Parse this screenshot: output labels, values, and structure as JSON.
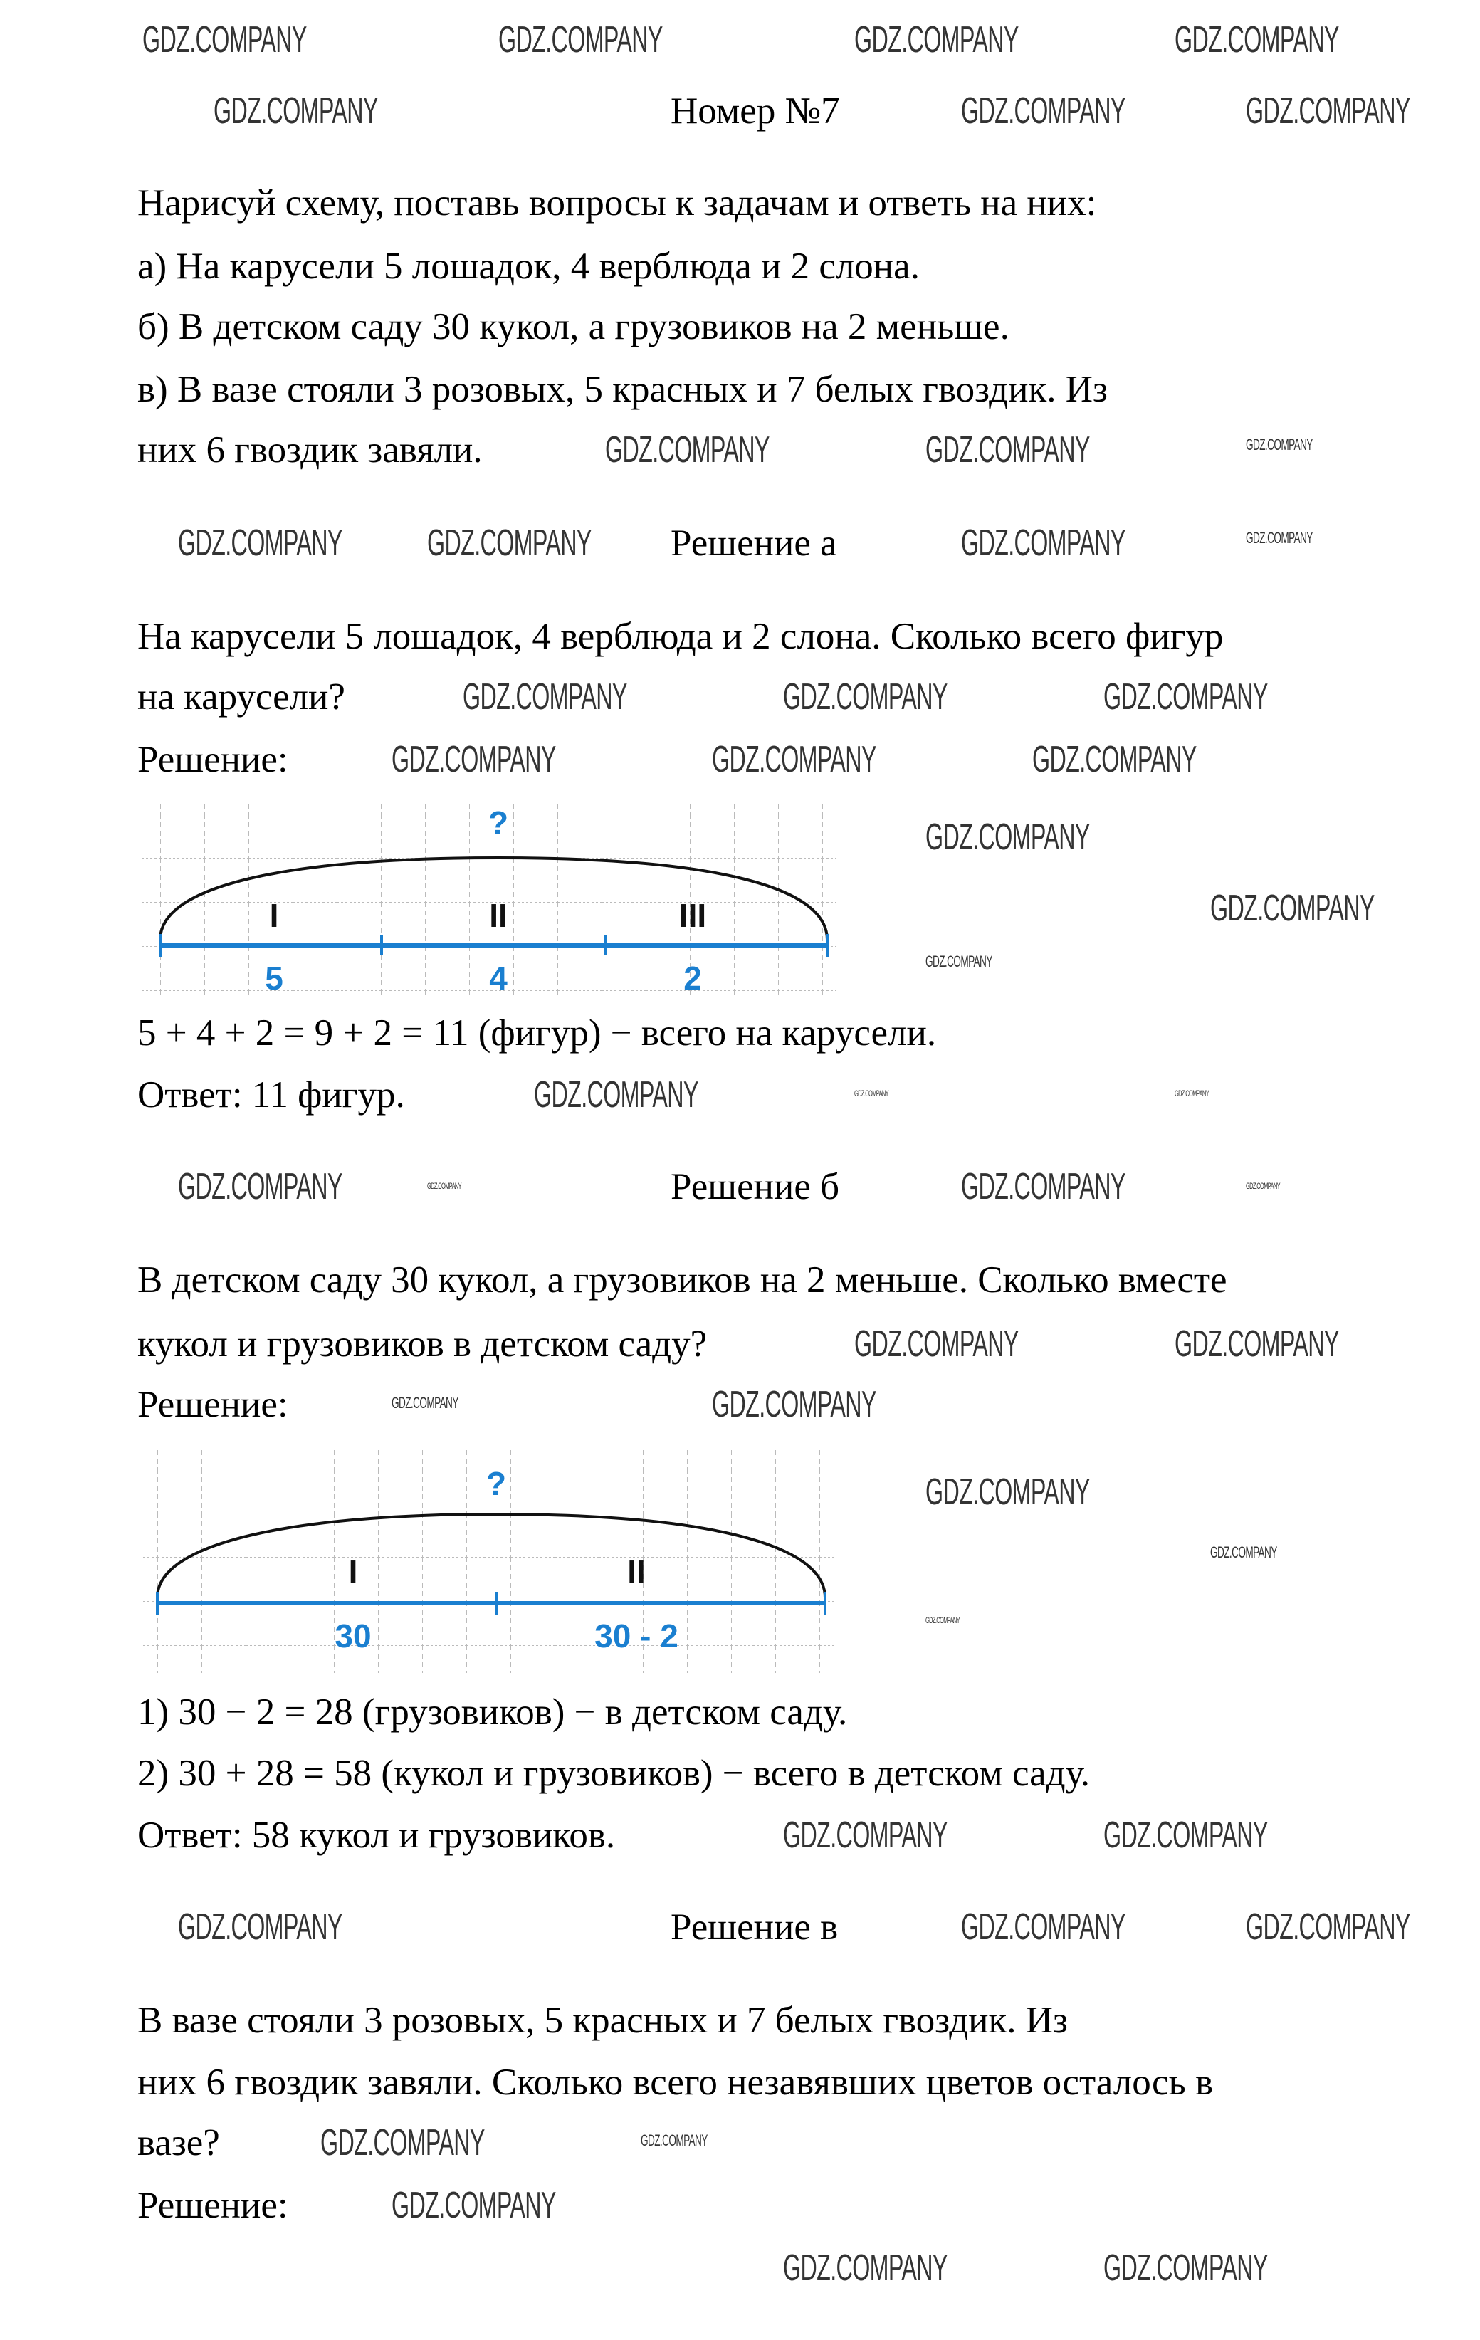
{
  "title": "Номер №7",
  "task": {
    "line1": "Нарисуй схему, поставь вопросы к задачам и ответь на них:",
    "a": "а) На карусели 5 лошадок, 4 верблюда и 2 слона.",
    "b": "б) В детском саду 30 кукол, а грузовиков на 2 меньше.",
    "c1": "в) В вазе стояли 3 розовых, 5 красных и 7 белых гвоздик. Из",
    "c2": "них 6 гвоздик завяли."
  },
  "solution_a": {
    "heading": "Решение а",
    "q1": "На карусели 5 лошадок, 4 верблюда и 2 слона. Сколько всего фигур",
    "q2": "на карусели?",
    "label": "Решение:",
    "diagram": {
      "question": "?",
      "parts": [
        "I",
        "II",
        "III"
      ],
      "values": [
        "5",
        "4",
        "2"
      ]
    },
    "calc": "5 + 4 + 2 = 9 + 2 = 11 (фигур) − всего на карусели.",
    "answer": "Ответ: 11 фигур."
  },
  "solution_b": {
    "heading": "Решение б",
    "q1": "В детском саду 30 кукол, а грузовиков на 2 меньше. Сколько вместе",
    "q2": "кукол и грузовиков в детском саду?",
    "label": "Решение:",
    "diagram": {
      "question": "?",
      "parts": [
        "I",
        "II"
      ],
      "values": [
        "30",
        "30 - 2"
      ]
    },
    "step1": "1) 30 − 2 = 28 (грузовиков) − в детском саду.",
    "step2": "2) 30 + 28 = 58 (кукол и грузовиков) − всего в детском саду.",
    "answer": "Ответ: 58 кукол и грузовиков."
  },
  "solution_c": {
    "heading": "Решение в",
    "q1": "В вазе стояли 3 розовых, 5 красных и 7 белых гвоздик. Из",
    "q2": "них 6 гвоздик завяли. Сколько всего незавявших цветов осталось в",
    "q3": "вазе?",
    "label": "Решение:"
  },
  "watermark": "GDZ.COMPANY",
  "colors": {
    "diagram_blue": "#1a7fd0",
    "grid": "#bbbbbb"
  }
}
